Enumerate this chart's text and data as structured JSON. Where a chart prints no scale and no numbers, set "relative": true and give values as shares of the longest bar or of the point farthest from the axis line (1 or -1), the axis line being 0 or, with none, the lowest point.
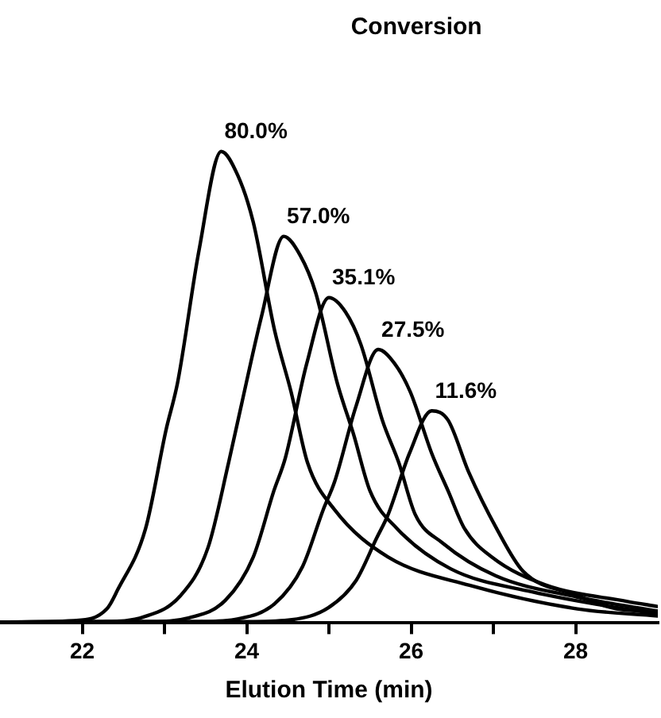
{
  "chart_data": {
    "type": "line",
    "title": "Conversion",
    "xlabel": "Elution Time (min)",
    "relative": true,
    "xlim": [
      21,
      29
    ],
    "xticks": [
      22,
      {
        "value": 23,
        "label": null
      },
      24,
      {
        "value": 25,
        "label": null
      },
      26,
      {
        "value": 27,
        "label": null
      },
      28
    ],
    "grid": false,
    "legend": false,
    "marker": "none",
    "line_style": "solid",
    "tick_labels": "x",
    "series": [
      {
        "name": "80.0%",
        "color": "#000000",
        "x": [
          21.0,
          21.9,
          22.3,
          22.43,
          22.77,
          23.02,
          23.16,
          23.42,
          23.69,
          23.89,
          24.08,
          24.34,
          24.54,
          24.74,
          25.07,
          25.72,
          26.71,
          28.02,
          29.0
        ],
        "values": [
          0.002,
          0.005,
          0.03,
          0.07,
          0.2,
          0.41,
          0.51,
          0.79,
          1.0,
          0.95,
          0.85,
          0.62,
          0.49,
          0.34,
          0.24,
          0.14,
          0.08,
          0.03,
          0.015
        ]
      },
      {
        "name": "57.0%",
        "color": "#000000",
        "x": [
          21.0,
          22.25,
          22.75,
          23.19,
          23.53,
          23.78,
          23.92,
          24.18,
          24.45,
          24.65,
          24.84,
          25.1,
          25.3,
          25.5,
          25.83,
          26.48,
          27.47,
          28.78,
          29.0
        ],
        "values": [
          0.002,
          0.003,
          0.013,
          0.057,
          0.16,
          0.34,
          0.45,
          0.65,
          0.82,
          0.78,
          0.7,
          0.51,
          0.4,
          0.28,
          0.2,
          0.115,
          0.066,
          0.025,
          0.02
        ]
      },
      {
        "name": "35.1%",
        "color": "#000000",
        "x": [
          21.0,
          22.8,
          23.3,
          23.74,
          24.08,
          24.33,
          24.47,
          24.73,
          25.0,
          25.2,
          25.39,
          25.65,
          25.85,
          26.05,
          26.38,
          27.03,
          28.02,
          29.0
        ],
        "values": [
          0.002,
          0.003,
          0.011,
          0.048,
          0.14,
          0.28,
          0.35,
          0.55,
          0.69,
          0.66,
          0.59,
          0.43,
          0.34,
          0.23,
          0.17,
          0.1,
          0.055,
          0.025
        ]
      },
      {
        "name": "27.5%",
        "color": "#000000",
        "x": [
          21.0,
          23.4,
          23.9,
          24.34,
          24.68,
          24.93,
          25.07,
          25.33,
          25.6,
          25.8,
          25.99,
          26.25,
          26.45,
          26.65,
          26.98,
          27.63,
          28.62,
          29.0
        ],
        "values": [
          0.002,
          0.003,
          0.009,
          0.041,
          0.12,
          0.24,
          0.3,
          0.46,
          0.58,
          0.55,
          0.49,
          0.36,
          0.28,
          0.2,
          0.14,
          0.081,
          0.046,
          0.035
        ]
      },
      {
        "name": "11.6%",
        "color": "#000000",
        "x": [
          21.0,
          24.05,
          24.55,
          24.99,
          25.33,
          25.58,
          25.72,
          25.98,
          26.25,
          26.45,
          26.7,
          27.04,
          27.36,
          28.0,
          28.5,
          29.0
        ],
        "values": [
          0.002,
          0.003,
          0.007,
          0.032,
          0.09,
          0.18,
          0.23,
          0.36,
          0.45,
          0.43,
          0.32,
          0.2,
          0.11,
          0.06,
          0.03,
          0.025
        ]
      }
    ]
  }
}
